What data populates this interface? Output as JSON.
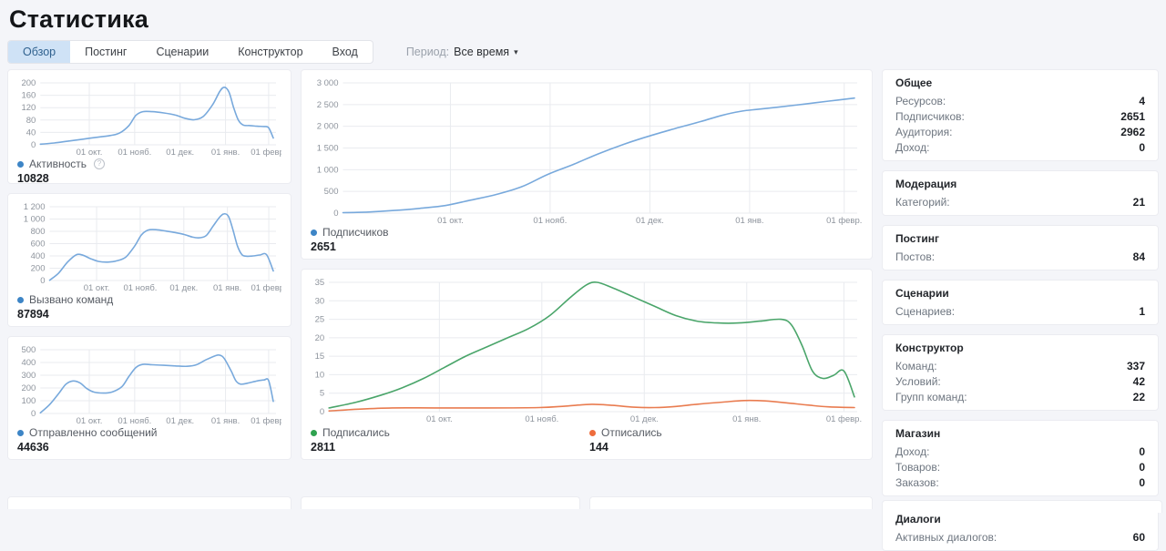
{
  "page_title": "Статистика",
  "tabs": {
    "items": [
      {
        "label": "Обзор",
        "active": true
      },
      {
        "label": "Постинг",
        "active": false
      },
      {
        "label": "Сценарии",
        "active": false
      },
      {
        "label": "Конструктор",
        "active": false
      },
      {
        "label": "Вход",
        "active": false
      }
    ]
  },
  "period": {
    "label": "Период:",
    "value": "Все время",
    "caret_icon": "▾"
  },
  "colors": {
    "blue_line": "#78a9dc",
    "blue_dot": "#3d85c6",
    "green_line": "#4aa56a",
    "green_dot": "#2fa24f",
    "orange_line": "#e97c50",
    "orange_dot": "#ee6c3c",
    "grid": "#e9ebef",
    "tick_text": "#8e949d",
    "active_tab_bg": "#cfe2f6"
  },
  "chart_data": [
    {
      "id": "activity",
      "type": "line",
      "title": "Активность",
      "ylim": [
        0,
        200
      ],
      "y_tick_values": [
        0,
        40,
        80,
        120,
        160,
        200
      ],
      "y_tick_labels": [
        "0",
        "40",
        "80",
        "120",
        "160",
        "200"
      ],
      "x_tick_pos": [
        0.21,
        0.405,
        0.6,
        0.795,
        0.98
      ],
      "x_tick_labels": [
        "01 окт.",
        "01 нояб.",
        "01 дек.",
        "01 янв.",
        "01 февр."
      ],
      "grid": true,
      "legend_position": "bottom",
      "series": [
        {
          "name": "Активность",
          "total": "10828",
          "line_color": "#78a9dc",
          "dot_color": "#3d85c6",
          "points": [
            [
              0,
              2
            ],
            [
              0.06,
              6
            ],
            [
              0.12,
              12
            ],
            [
              0.18,
              18
            ],
            [
              0.24,
              24
            ],
            [
              0.3,
              30
            ],
            [
              0.34,
              38
            ],
            [
              0.38,
              62
            ],
            [
              0.41,
              95
            ],
            [
              0.44,
              107
            ],
            [
              0.48,
              107
            ],
            [
              0.53,
              103
            ],
            [
              0.58,
              96
            ],
            [
              0.62,
              86
            ],
            [
              0.66,
              81
            ],
            [
              0.7,
              92
            ],
            [
              0.74,
              130
            ],
            [
              0.77,
              172
            ],
            [
              0.79,
              186
            ],
            [
              0.81,
              170
            ],
            [
              0.83,
              120
            ],
            [
              0.85,
              80
            ],
            [
              0.87,
              64
            ],
            [
              0.9,
              62
            ],
            [
              0.93,
              60
            ],
            [
              0.96,
              59
            ],
            [
              0.98,
              55
            ],
            [
              1,
              22
            ]
          ]
        }
      ]
    },
    {
      "id": "commands",
      "type": "line",
      "title": "Вызвано команд",
      "ylim": [
        0,
        1200
      ],
      "y_tick_values": [
        0,
        200,
        400,
        600,
        800,
        1000,
        1200
      ],
      "y_tick_labels": [
        "0",
        "200",
        "400",
        "600",
        "800",
        "1 000",
        "1 200"
      ],
      "x_tick_pos": [
        0.21,
        0.405,
        0.6,
        0.795,
        0.98
      ],
      "x_tick_labels": [
        "01 окт.",
        "01 нояб.",
        "01 дек.",
        "01 янв.",
        "01 февр."
      ],
      "grid": true,
      "legend_position": "bottom",
      "series": [
        {
          "name": "Вызвано команд",
          "total": "87894",
          "line_color": "#78a9dc",
          "dot_color": "#3d85c6",
          "points": [
            [
              0,
              5
            ],
            [
              0.04,
              120
            ],
            [
              0.08,
              300
            ],
            [
              0.12,
              420
            ],
            [
              0.15,
              410
            ],
            [
              0.18,
              360
            ],
            [
              0.22,
              310
            ],
            [
              0.26,
              300
            ],
            [
              0.3,
              320
            ],
            [
              0.34,
              380
            ],
            [
              0.38,
              560
            ],
            [
              0.41,
              740
            ],
            [
              0.44,
              820
            ],
            [
              0.48,
              825
            ],
            [
              0.52,
              805
            ],
            [
              0.56,
              780
            ],
            [
              0.6,
              750
            ],
            [
              0.64,
              705
            ],
            [
              0.67,
              695
            ],
            [
              0.7,
              730
            ],
            [
              0.73,
              880
            ],
            [
              0.76,
              1030
            ],
            [
              0.78,
              1085
            ],
            [
              0.8,
              1040
            ],
            [
              0.82,
              820
            ],
            [
              0.84,
              560
            ],
            [
              0.86,
              420
            ],
            [
              0.88,
              395
            ],
            [
              0.91,
              400
            ],
            [
              0.94,
              415
            ],
            [
              0.97,
              420
            ],
            [
              1,
              155
            ]
          ]
        }
      ]
    },
    {
      "id": "messages",
      "type": "line",
      "title": "Отправленно сообщений",
      "ylim": [
        0,
        500
      ],
      "y_tick_values": [
        0,
        100,
        200,
        300,
        400,
        500
      ],
      "y_tick_labels": [
        "0",
        "100",
        "200",
        "300",
        "400",
        "500"
      ],
      "x_tick_pos": [
        0.21,
        0.405,
        0.6,
        0.795,
        0.98
      ],
      "x_tick_labels": [
        "01 окт.",
        "01 нояб.",
        "01 дек.",
        "01 янв.",
        "01 февр."
      ],
      "grid": true,
      "legend_position": "bottom",
      "series": [
        {
          "name": "Отправленно сообщений",
          "total": "44636",
          "line_color": "#78a9dc",
          "dot_color": "#3d85c6",
          "points": [
            [
              0,
              5
            ],
            [
              0.04,
              70
            ],
            [
              0.08,
              160
            ],
            [
              0.11,
              230
            ],
            [
              0.14,
              255
            ],
            [
              0.17,
              240
            ],
            [
              0.2,
              195
            ],
            [
              0.23,
              168
            ],
            [
              0.27,
              160
            ],
            [
              0.31,
              170
            ],
            [
              0.35,
              210
            ],
            [
              0.38,
              290
            ],
            [
              0.41,
              360
            ],
            [
              0.44,
              385
            ],
            [
              0.48,
              382
            ],
            [
              0.53,
              378
            ],
            [
              0.58,
              373
            ],
            [
              0.63,
              370
            ],
            [
              0.67,
              382
            ],
            [
              0.71,
              420
            ],
            [
              0.75,
              452
            ],
            [
              0.77,
              457
            ],
            [
              0.79,
              430
            ],
            [
              0.82,
              330
            ],
            [
              0.84,
              255
            ],
            [
              0.86,
              230
            ],
            [
              0.89,
              238
            ],
            [
              0.93,
              255
            ],
            [
              0.96,
              263
            ],
            [
              0.98,
              258
            ],
            [
              1,
              95
            ]
          ]
        }
      ]
    },
    {
      "id": "subscribers",
      "type": "line",
      "title": "Подписчиков",
      "ylim": [
        0,
        3000
      ],
      "y_tick_values": [
        0,
        500,
        1000,
        1500,
        2000,
        2500,
        3000
      ],
      "y_tick_labels": [
        "0",
        "500",
        "1 000",
        "1 500",
        "2 000",
        "2 500",
        "3 000"
      ],
      "x_tick_pos": [
        0.21,
        0.405,
        0.6,
        0.795,
        0.98
      ],
      "x_tick_labels": [
        "01 окт.",
        "01 нояб.",
        "01 дек.",
        "01 янв.",
        "01 февр."
      ],
      "grid": true,
      "legend_position": "bottom",
      "series": [
        {
          "name": "Подписчиков",
          "total": "2651",
          "line_color": "#78a9dc",
          "dot_color": "#3d85c6",
          "points": [
            [
              0,
              10
            ],
            [
              0.05,
              25
            ],
            [
              0.1,
              60
            ],
            [
              0.15,
              110
            ],
            [
              0.2,
              175
            ],
            [
              0.25,
              300
            ],
            [
              0.3,
              430
            ],
            [
              0.35,
              610
            ],
            [
              0.4,
              890
            ],
            [
              0.45,
              1120
            ],
            [
              0.5,
              1370
            ],
            [
              0.55,
              1590
            ],
            [
              0.6,
              1780
            ],
            [
              0.65,
              1950
            ],
            [
              0.7,
              2110
            ],
            [
              0.74,
              2250
            ],
            [
              0.78,
              2350
            ],
            [
              0.81,
              2390
            ],
            [
              0.85,
              2440
            ],
            [
              0.9,
              2510
            ],
            [
              0.95,
              2580
            ],
            [
              1,
              2650
            ]
          ]
        }
      ]
    },
    {
      "id": "subs-unsubs",
      "type": "line",
      "title": "Подписались / Отписались",
      "ylim": [
        0,
        35
      ],
      "y_tick_values": [
        0,
        5,
        10,
        15,
        20,
        25,
        30,
        35
      ],
      "y_tick_labels": [
        "0",
        "5",
        "10",
        "15",
        "20",
        "25",
        "30",
        "35"
      ],
      "x_tick_pos": [
        0.21,
        0.405,
        0.6,
        0.795,
        0.98
      ],
      "x_tick_labels": [
        "01 окт.",
        "01 нояб.",
        "01 дек.",
        "01 янв.",
        "01 февр."
      ],
      "grid": true,
      "legend_position": "bottom",
      "series": [
        {
          "name": "Подписались",
          "total": "2811",
          "line_color": "#4aa56a",
          "dot_color": "#2fa24f",
          "points": [
            [
              0,
              1
            ],
            [
              0.05,
              2.5
            ],
            [
              0.1,
              4.5
            ],
            [
              0.14,
              6.5
            ],
            [
              0.18,
              9
            ],
            [
              0.22,
              12
            ],
            [
              0.26,
              15
            ],
            [
              0.3,
              17.5
            ],
            [
              0.34,
              20
            ],
            [
              0.38,
              22.5
            ],
            [
              0.42,
              26
            ],
            [
              0.46,
              31
            ],
            [
              0.49,
              34.3
            ],
            [
              0.51,
              35
            ],
            [
              0.54,
              33.5
            ],
            [
              0.58,
              31
            ],
            [
              0.62,
              28.5
            ],
            [
              0.66,
              26
            ],
            [
              0.7,
              24.5
            ],
            [
              0.74,
              24
            ],
            [
              0.78,
              24
            ],
            [
              0.82,
              24.5
            ],
            [
              0.86,
              25
            ],
            [
              0.88,
              23.5
            ],
            [
              0.9,
              18
            ],
            [
              0.92,
              11
            ],
            [
              0.94,
              9
            ],
            [
              0.96,
              9.8
            ],
            [
              0.98,
              11
            ],
            [
              1,
              4
            ]
          ]
        },
        {
          "name": "Отписались",
          "total": "144",
          "line_color": "#e97c50",
          "dot_color": "#ee6c3c",
          "points": [
            [
              0,
              0.2
            ],
            [
              0.06,
              0.7
            ],
            [
              0.12,
              1
            ],
            [
              0.2,
              1
            ],
            [
              0.3,
              1
            ],
            [
              0.4,
              1.1
            ],
            [
              0.45,
              1.5
            ],
            [
              0.5,
              2
            ],
            [
              0.54,
              1.7
            ],
            [
              0.58,
              1.2
            ],
            [
              0.62,
              1.1
            ],
            [
              0.66,
              1.4
            ],
            [
              0.7,
              2
            ],
            [
              0.75,
              2.6
            ],
            [
              0.79,
              3
            ],
            [
              0.83,
              2.9
            ],
            [
              0.87,
              2.4
            ],
            [
              0.91,
              1.8
            ],
            [
              0.95,
              1.3
            ],
            [
              1,
              1.1
            ]
          ]
        }
      ]
    }
  ],
  "sidebar": {
    "panels": [
      {
        "title": "Общее",
        "rows": [
          {
            "label": "Ресурсов:",
            "value": "4"
          },
          {
            "label": "Подписчиков:",
            "value": "2651"
          },
          {
            "label": "Аудитория:",
            "value": "2962"
          },
          {
            "label": "Доход:",
            "value": "0"
          }
        ]
      },
      {
        "title": "Модерация",
        "rows": [
          {
            "label": "Категорий:",
            "value": "21"
          }
        ]
      },
      {
        "title": "Постинг",
        "rows": [
          {
            "label": "Постов:",
            "value": "84"
          }
        ]
      },
      {
        "title": "Сценарии",
        "rows": [
          {
            "label": "Сценариев:",
            "value": "1"
          }
        ]
      },
      {
        "title": "Конструктор",
        "rows": [
          {
            "label": "Команд:",
            "value": "337"
          },
          {
            "label": "Условий:",
            "value": "42"
          },
          {
            "label": "Групп команд:",
            "value": "22"
          }
        ]
      },
      {
        "title": "Магазин",
        "rows": [
          {
            "label": "Доход:",
            "value": "0"
          },
          {
            "label": "Товаров:",
            "value": "0"
          },
          {
            "label": "Заказов:",
            "value": "0"
          }
        ]
      },
      {
        "title": "Диалоги",
        "rows": [
          {
            "label": "Активных диалогов:",
            "value": "60"
          }
        ]
      }
    ]
  },
  "icons": {
    "info": "?"
  }
}
